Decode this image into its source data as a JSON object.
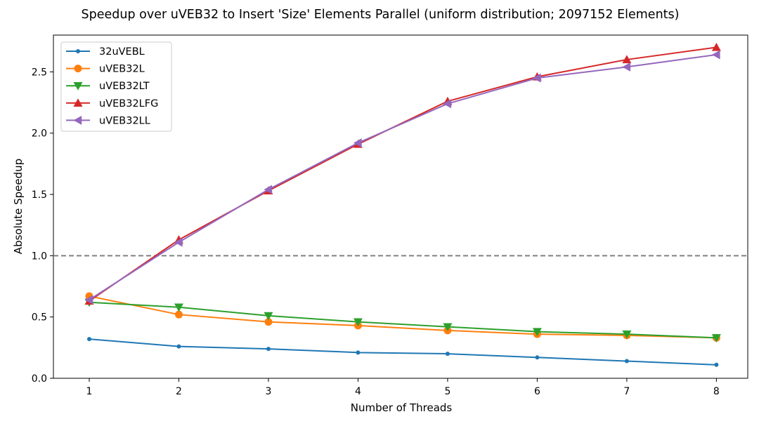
{
  "chart_data": {
    "type": "line",
    "title": "Speedup over uVEB32 to Insert 'Size' Elements Parallel (uniform distribution; 2097152 Elements)",
    "xlabel": "Number of Threads",
    "ylabel": "Absolute Speedup",
    "x": [
      1,
      2,
      3,
      4,
      5,
      6,
      7,
      8
    ],
    "xlim": [
      0.6,
      8.35
    ],
    "ylim": [
      0.0,
      2.8
    ],
    "xticks": [
      "1",
      "2",
      "3",
      "4",
      "5",
      "6",
      "7",
      "8"
    ],
    "yticks": [
      "0.0",
      "0.5",
      "1.0",
      "1.5",
      "2.0",
      "2.5"
    ],
    "reference_line": {
      "y": 1.0,
      "style": "dashed",
      "color": "#808080"
    },
    "grid": false,
    "legend_position": "upper-left",
    "series": [
      {
        "name": "32uVEBL",
        "color": "#1f77b4",
        "marker": "point",
        "values": [
          0.32,
          0.26,
          0.24,
          0.21,
          0.2,
          0.17,
          0.14,
          0.11
        ]
      },
      {
        "name": "uVEB32L",
        "color": "#ff7f0e",
        "marker": "circle",
        "values": [
          0.67,
          0.52,
          0.46,
          0.43,
          0.39,
          0.36,
          0.35,
          0.33
        ]
      },
      {
        "name": "uVEB32LT",
        "color": "#2ca02c",
        "marker": "triangle-down",
        "values": [
          0.62,
          0.58,
          0.51,
          0.46,
          0.42,
          0.38,
          0.36,
          0.33
        ]
      },
      {
        "name": "uVEB32LFG",
        "color": "#d62728",
        "marker": "triangle-up",
        "values": [
          0.63,
          1.13,
          1.53,
          1.91,
          2.26,
          2.46,
          2.6,
          2.7
        ]
      },
      {
        "name": "uVEB32LL",
        "color": "#9467bd",
        "marker": "triangle-left",
        "values": [
          0.64,
          1.11,
          1.54,
          1.92,
          2.24,
          2.45,
          2.54,
          2.64
        ]
      }
    ]
  }
}
